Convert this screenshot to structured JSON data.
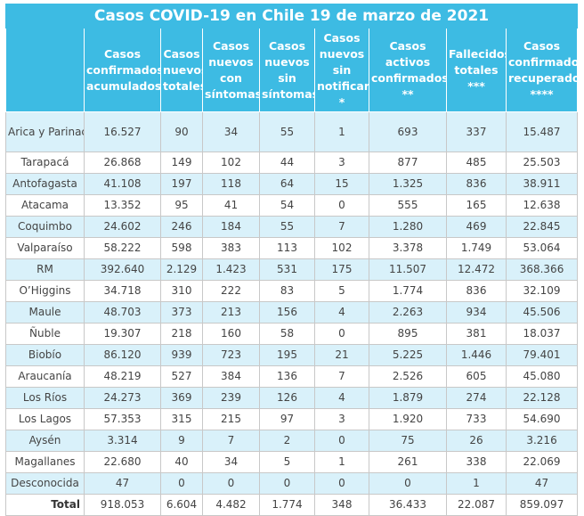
{
  "title": "Casos COVID-19 en Chile 19 de marzo de 2021",
  "headers": [
    {
      "lines": [
        "Casos",
        "confirmados",
        "acumulados"
      ]
    },
    {
      "lines": [
        "Casos",
        "nuevos",
        "totales"
      ]
    },
    {
      "lines": [
        "Casos",
        "nuevos",
        "con",
        "síntomas"
      ]
    },
    {
      "lines": [
        "Casos",
        "nuevos",
        "sin",
        "síntomas"
      ]
    },
    {
      "lines": [
        "Casos",
        "nuevos",
        "sin",
        "notificar",
        "*"
      ]
    },
    {
      "lines": [
        "Casos",
        "activos",
        "confirmados",
        "**"
      ]
    },
    {
      "lines": [
        "Fallecidos",
        "totales",
        "***"
      ]
    },
    {
      "lines": [
        "Casos",
        "confirmados",
        "recuperados",
        "****"
      ]
    }
  ],
  "rows": [
    {
      "region": "Arica y Parinacota",
      "values": [
        "16.527",
        "90",
        "34",
        "55",
        "1",
        "693",
        "337",
        "15.487"
      ]
    },
    {
      "region": "Tarapacá",
      "values": [
        "26.868",
        "149",
        "102",
        "44",
        "3",
        "877",
        "485",
        "25.503"
      ]
    },
    {
      "region": "Antofagasta",
      "values": [
        "41.108",
        "197",
        "118",
        "64",
        "15",
        "1.325",
        "836",
        "38.911"
      ]
    },
    {
      "region": "Atacama",
      "values": [
        "13.352",
        "95",
        "41",
        "54",
        "0",
        "555",
        "165",
        "12.638"
      ]
    },
    {
      "region": "Coquimbo",
      "values": [
        "24.602",
        "246",
        "184",
        "55",
        "7",
        "1.280",
        "469",
        "22.845"
      ]
    },
    {
      "region": "Valparaíso",
      "values": [
        "58.222",
        "598",
        "383",
        "113",
        "102",
        "3.378",
        "1.749",
        "53.064"
      ]
    },
    {
      "region": "RM",
      "values": [
        "392.640",
        "2.129",
        "1.423",
        "531",
        "175",
        "11.507",
        "12.472",
        "368.366"
      ]
    },
    {
      "region": "O’Higgins",
      "values": [
        "34.718",
        "310",
        "222",
        "83",
        "5",
        "1.774",
        "836",
        "32.109"
      ]
    },
    {
      "region": "Maule",
      "values": [
        "48.703",
        "373",
        "213",
        "156",
        "4",
        "2.263",
        "934",
        "45.506"
      ]
    },
    {
      "region": "Ñuble",
      "values": [
        "19.307",
        "218",
        "160",
        "58",
        "0",
        "895",
        "381",
        "18.037"
      ]
    },
    {
      "region": "Biobío",
      "values": [
        "86.120",
        "939",
        "723",
        "195",
        "21",
        "5.225",
        "1.446",
        "79.401"
      ]
    },
    {
      "region": "Araucanía",
      "values": [
        "48.219",
        "527",
        "384",
        "136",
        "7",
        "2.526",
        "605",
        "45.080"
      ]
    },
    {
      "region": "Los Ríos",
      "values": [
        "24.273",
        "369",
        "239",
        "126",
        "4",
        "1.879",
        "274",
        "22.128"
      ]
    },
    {
      "region": "Los Lagos",
      "values": [
        "57.353",
        "315",
        "215",
        "97",
        "3",
        "1.920",
        "733",
        "54.690"
      ]
    },
    {
      "region": "Aysén",
      "values": [
        "3.314",
        "9",
        "7",
        "2",
        "0",
        "75",
        "26",
        "3.216"
      ]
    },
    {
      "region": "Magallanes",
      "values": [
        "22.680",
        "40",
        "34",
        "5",
        "1",
        "261",
        "338",
        "22.069"
      ]
    },
    {
      "region": "Desconocida",
      "values": [
        "47",
        "0",
        "0",
        "0",
        "0",
        "0",
        "1",
        "47"
      ]
    }
  ],
  "total": {
    "region": "Total",
    "values": [
      "918.053",
      "6.604",
      "4.482",
      "1.774",
      "348",
      "36.433",
      "22.087",
      "859.097"
    ]
  },
  "colors": {
    "header_bg": "#3dbbe3",
    "header_text": "#ffffff",
    "stripe": "#d9f1fa",
    "body_text": "#444444"
  }
}
